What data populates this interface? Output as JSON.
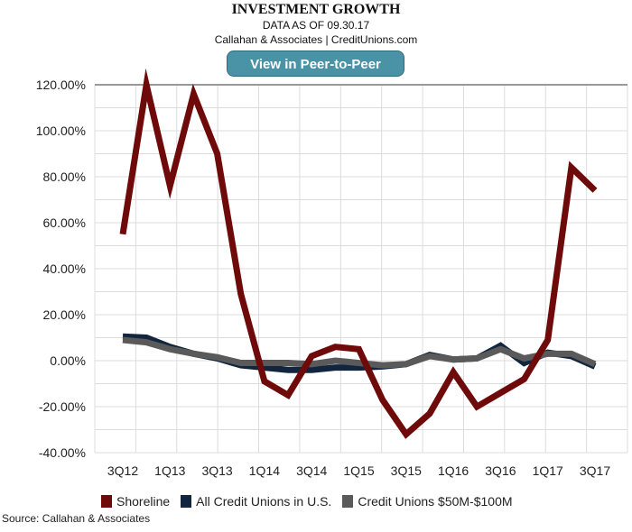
{
  "header": {
    "title": "INVESTMENT GROWTH",
    "data_as_of": "DATA AS OF 09.30.17",
    "credit": "Callahan & Associates | CreditUnions.com",
    "button_label": "View in Peer-to-Peer"
  },
  "source": "Source: Callahan & Associates",
  "chart_data": {
    "type": "line",
    "title": "INVESTMENT GROWTH",
    "ylim": [
      -40,
      120
    ],
    "yticks": [
      -40,
      -20,
      0,
      20,
      40,
      60,
      80,
      100,
      120
    ],
    "ytick_labels": [
      "-40.00%",
      "-20.00%",
      "0.00%",
      "20.00%",
      "40.00%",
      "60.00%",
      "80.00%",
      "100.00%",
      "120.00%"
    ],
    "categories": [
      "3Q12",
      "4Q12",
      "1Q13",
      "2Q13",
      "3Q13",
      "4Q13",
      "1Q14",
      "2Q14",
      "3Q14",
      "4Q14",
      "1Q15",
      "2Q15",
      "3Q15",
      "4Q15",
      "1Q16",
      "2Q16",
      "3Q16",
      "4Q16",
      "1Q17",
      "2Q17",
      "3Q17"
    ],
    "xtick_labels": [
      "3Q12",
      "1Q13",
      "3Q13",
      "1Q14",
      "3Q14",
      "1Q15",
      "3Q15",
      "1Q16",
      "3Q16",
      "1Q17",
      "3Q17"
    ],
    "legend_position": "bottom",
    "grid": true,
    "series": [
      {
        "name": "All Credit Unions in U.S.",
        "color": "#12253f",
        "values": [
          10.5,
          10,
          6,
          3,
          1,
          -2,
          -3,
          -4,
          -4,
          -3,
          -3,
          -2.5,
          -1.5,
          2.5,
          0.5,
          1,
          6.5,
          -1,
          3.5,
          2,
          -2.5
        ]
      },
      {
        "name": "Credit Unions $50M-$100M",
        "color": "#5a5a5a",
        "values": [
          9,
          8,
          5,
          3,
          1.5,
          -1,
          -1,
          -1,
          -1.5,
          0,
          -1,
          -2,
          -1.5,
          2,
          0.5,
          1,
          5,
          1,
          3,
          3,
          -1.5
        ]
      },
      {
        "name": "Shoreline",
        "color": "#6e0a0a",
        "values": [
          55,
          120,
          76,
          116,
          90,
          29,
          -9,
          -15,
          2,
          6,
          5,
          -17,
          -32,
          -23,
          -5,
          -20,
          -14,
          -8,
          9,
          84,
          74
        ]
      }
    ],
    "legend_order": [
      "Shoreline",
      "All Credit Unions in U.S.",
      "Credit Unions $50M-$100M"
    ]
  }
}
